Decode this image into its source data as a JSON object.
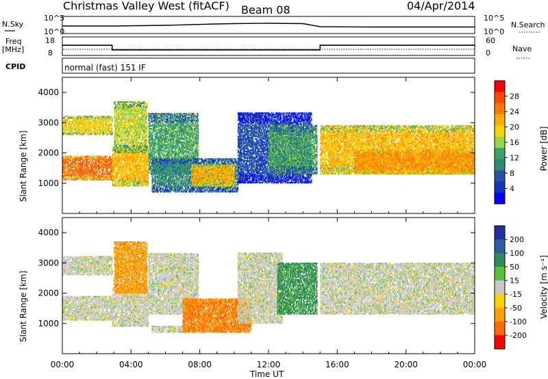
{
  "header": {
    "station": "Christmas Valley West (fitACF)",
    "beam": "Beam 08",
    "date": "04/Apr/2014"
  },
  "top_panels": {
    "nsky_label": "N.Sky",
    "nsky_ticks": [
      "10^5",
      "10^0"
    ],
    "nsearch_label": "N.Search",
    "nsearch_ticks": [
      "10^5",
      "10^0"
    ],
    "freq_label": "Freq",
    "freq_unit": "[MHz]",
    "freq_ticks": [
      "18",
      "8"
    ],
    "nave_label": "Nave",
    "nave_ticks": [
      "60",
      "0"
    ],
    "cpid_label": "CPID",
    "cpid_text": "normal (fast) 151 IF"
  },
  "axes": {
    "x_ticks": [
      "00:00",
      "04:00",
      "08:00",
      "12:00",
      "16:00",
      "20:00",
      "00:00"
    ],
    "xlabel": "Time UT",
    "ylabel": "Slant Range [km]",
    "y_ticks": [
      "1000",
      "2000",
      "3000",
      "4000"
    ]
  },
  "power_colorbar": {
    "label": "Power [dB]",
    "ticks": [
      "28",
      "24",
      "20",
      "16",
      "12",
      "8",
      "4"
    ],
    "colors": [
      "#ff0000",
      "#ff4a00",
      "#ff7a00",
      "#ffae00",
      "#ffd500",
      "#9bd43e",
      "#3ca36a",
      "#2e8b73",
      "#2a4fa8",
      "#1434c8",
      "#0000ff"
    ]
  },
  "velocity_colorbar": {
    "label": "Velocity [m s⁻¹]",
    "ticks": [
      "200",
      "100",
      "50",
      "15",
      "-15",
      "-50",
      "-100",
      "-200"
    ],
    "colors": [
      "#1f2fa8",
      "#2b5fa0",
      "#2e8b57",
      "#5bc236",
      "#c8c8c8",
      "#ffd000",
      "#ffa000",
      "#ff6a00",
      "#ff0000"
    ]
  },
  "chart_data": [
    {
      "type": "heatmap",
      "title": "Power",
      "xlabel": "Time UT",
      "ylabel": "Slant Range [km]",
      "x_range_hours": [
        0,
        24
      ],
      "y_range_km": [
        0,
        4500
      ],
      "colorbar_label": "Power [dB]",
      "colorbar_ticks": [
        4,
        8,
        12,
        16,
        20,
        24,
        28
      ],
      "regions": [
        {
          "t": [
            0.0,
            2.9
          ],
          "r": [
            1100,
            1900
          ],
          "value_db": 28
        },
        {
          "t": [
            0.0,
            2.9
          ],
          "r": [
            2600,
            3200
          ],
          "value_db": 22
        },
        {
          "t": [
            2.9,
            5.0
          ],
          "r": [
            900,
            2200
          ],
          "value_db": 24
        },
        {
          "t": [
            3.0,
            4.9
          ],
          "r": [
            2000,
            3700
          ],
          "value_db": 20
        },
        {
          "t": [
            5.0,
            7.9
          ],
          "r": [
            1300,
            3300
          ],
          "value_db": 16
        },
        {
          "t": [
            5.2,
            10.2
          ],
          "r": [
            700,
            1800
          ],
          "value_db": 14
        },
        {
          "t": [
            7.5,
            10.0
          ],
          "r": [
            900,
            1600
          ],
          "value_db": 24
        },
        {
          "t": [
            10.2,
            14.5
          ],
          "r": [
            1000,
            3300
          ],
          "value_db": 10
        },
        {
          "t": [
            12.0,
            14.8
          ],
          "r": [
            1300,
            2900
          ],
          "value_db": 16
        },
        {
          "t": [
            15.0,
            24.0
          ],
          "r": [
            1300,
            2900
          ],
          "value_db": 24
        },
        {
          "t": [
            17.0,
            24.0
          ],
          "r": [
            1300,
            2100
          ],
          "value_db": 26
        }
      ]
    },
    {
      "type": "heatmap",
      "title": "Velocity",
      "xlabel": "Time UT",
      "ylabel": "Slant Range [km]",
      "x_range_hours": [
        0,
        24
      ],
      "y_range_km": [
        0,
        4500
      ],
      "colorbar_label": "Velocity [m s⁻¹]",
      "colorbar_ticks": [
        -200,
        -100,
        -50,
        -15,
        15,
        50,
        100,
        200
      ],
      "regions": [
        {
          "t": [
            0.0,
            2.9
          ],
          "r": [
            1100,
            1900
          ],
          "value_ms": 0
        },
        {
          "t": [
            0.0,
            2.9
          ],
          "r": [
            2600,
            3200
          ],
          "value_ms": 0
        },
        {
          "t": [
            2.9,
            5.0
          ],
          "r": [
            900,
            2200
          ],
          "value_ms": 0
        },
        {
          "t": [
            3.0,
            4.9
          ],
          "r": [
            2000,
            3700
          ],
          "value_ms": -60
        },
        {
          "t": [
            5.0,
            7.9
          ],
          "r": [
            1300,
            3300
          ],
          "value_ms": 0
        },
        {
          "t": [
            5.2,
            7.5
          ],
          "r": [
            700,
            900
          ],
          "value_ms": 0
        },
        {
          "t": [
            7.0,
            11.0
          ],
          "r": [
            700,
            1800
          ],
          "value_ms": -80
        },
        {
          "t": [
            10.2,
            12.8
          ],
          "r": [
            1000,
            3300
          ],
          "value_ms": 0
        },
        {
          "t": [
            12.5,
            14.8
          ],
          "r": [
            1300,
            3000
          ],
          "value_ms": 40
        },
        {
          "t": [
            15.0,
            24.0
          ],
          "r": [
            1300,
            3000
          ],
          "value_ms": 0
        }
      ]
    },
    {
      "type": "line",
      "title": "N.Sky",
      "x_range_hours": [
        0,
        24
      ],
      "x": [
        0,
        3,
        6,
        9,
        10,
        12,
        14,
        15,
        18,
        21,
        24
      ],
      "y_log10": [
        2.2,
        2.2,
        2.4,
        2.8,
        2.9,
        3.0,
        2.9,
        2.0,
        1.9,
        1.9,
        1.9
      ]
    },
    {
      "type": "line",
      "title": "Freq",
      "x_range_hours": [
        0,
        24
      ],
      "x": [
        0,
        2.9,
        2.9,
        15.0,
        15.0,
        24
      ],
      "y_mhz": [
        13.5,
        13.5,
        11.0,
        11.0,
        13.5,
        13.5
      ]
    }
  ]
}
